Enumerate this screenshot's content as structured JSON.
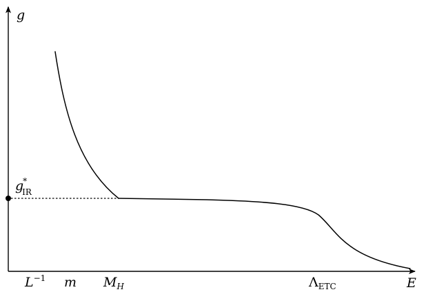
{
  "axes": {
    "y_label": "g",
    "x_label": "E"
  },
  "y_marker": {
    "base": "g",
    "superscript": "*",
    "subscript": "IR"
  },
  "x_ticks": [
    {
      "base": "L",
      "superscript": "−1"
    },
    {
      "base": "m"
    },
    {
      "base": "M",
      "subscript": "H"
    },
    {
      "base": "Λ",
      "subscript": "ETC"
    }
  ]
}
